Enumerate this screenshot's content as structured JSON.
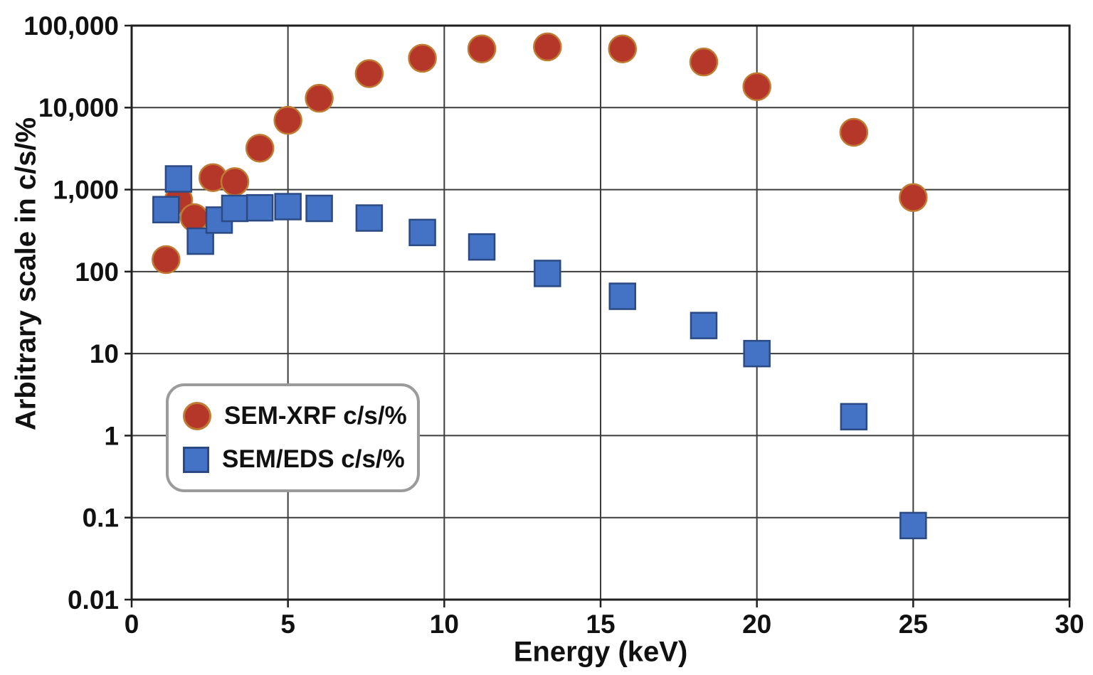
{
  "page": {
    "background": "#ffffff"
  },
  "chart_data": {
    "type": "scatter",
    "title": "",
    "xlabel": "Energy (keV)",
    "ylabel": "Arbitrary scale in c/s/%",
    "x_axis": {
      "min": 0,
      "max": 30,
      "ticks": [
        0,
        5,
        10,
        15,
        20,
        25,
        30
      ]
    },
    "y_axis": {
      "scale": "log",
      "min": 0.01,
      "max": 100000,
      "tick_values": [
        100000,
        10000,
        1000,
        100,
        10,
        1,
        0.1,
        0.01
      ],
      "tick_labels": [
        "100,000",
        "10,000",
        "1,000",
        "100",
        "10",
        "1",
        "0.1",
        "0.01"
      ]
    },
    "grid": true,
    "legend": {
      "position": "lower-left"
    },
    "series": [
      {
        "name": "SEM-XRF c/s/%",
        "marker": "circle",
        "fill": "#b5372a",
        "edge": "#c07b33",
        "points": [
          [
            1.1,
            140
          ],
          [
            1.5,
            750
          ],
          [
            2.0,
            455
          ],
          [
            2.6,
            1400
          ],
          [
            3.3,
            1250
          ],
          [
            4.1,
            3200
          ],
          [
            5.0,
            7000
          ],
          [
            6.0,
            13000
          ],
          [
            7.6,
            26000
          ],
          [
            9.3,
            40000
          ],
          [
            11.2,
            52000
          ],
          [
            13.3,
            55000
          ],
          [
            15.7,
            52000
          ],
          [
            18.3,
            36000
          ],
          [
            20.0,
            18000
          ],
          [
            23.1,
            5000
          ],
          [
            25.0,
            800
          ]
        ]
      },
      {
        "name": "SEM/EDS c/s/%",
        "marker": "square",
        "fill": "#4473c5",
        "edge": "#2b4a84",
        "points": [
          [
            1.1,
            570
          ],
          [
            1.5,
            1350
          ],
          [
            2.2,
            235
          ],
          [
            2.8,
            425
          ],
          [
            3.3,
            590
          ],
          [
            4.1,
            600
          ],
          [
            5.0,
            620
          ],
          [
            6.0,
            590
          ],
          [
            7.6,
            450
          ],
          [
            9.3,
            300
          ],
          [
            11.2,
            200
          ],
          [
            13.3,
            95
          ],
          [
            15.7,
            50
          ],
          [
            18.3,
            22
          ],
          [
            20.0,
            10
          ],
          [
            23.1,
            1.7
          ],
          [
            25.0,
            0.08
          ]
        ]
      }
    ],
    "colors": {
      "grid": "#3c3c3c",
      "axis_border": "#1f1f1f",
      "text": "#111111",
      "legend_border": "#9b9b9b"
    }
  }
}
